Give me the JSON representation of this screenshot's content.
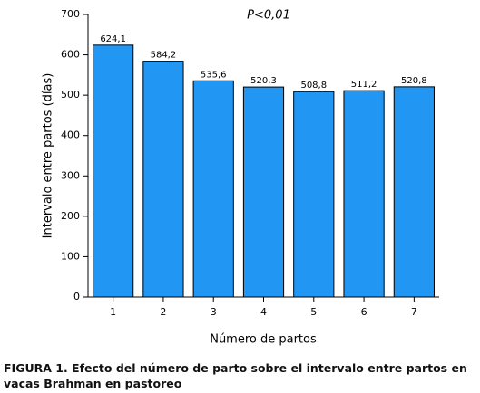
{
  "chart_data": {
    "type": "bar",
    "annotation": "P<0,01",
    "x_label": "Número de partos",
    "y_label": "Intervalo entre partos (días)",
    "caption": "FIGURA 1. Efecto del número de parto sobre el intervalo entre partos en vacas Brahman en pastoreo",
    "categories": [
      "1",
      "2",
      "3",
      "4",
      "5",
      "6",
      "7"
    ],
    "values": [
      624.1,
      584.2,
      535.6,
      520.3,
      508.8,
      511.2,
      520.8
    ],
    "value_labels": [
      "624,1",
      "584,2",
      "535,6",
      "520,3",
      "508,8",
      "511,2",
      "520,8"
    ],
    "color": "#2196f3",
    "ylim": [
      0,
      700
    ],
    "yticks": [
      0,
      100,
      200,
      300,
      400,
      500,
      600,
      700
    ]
  }
}
